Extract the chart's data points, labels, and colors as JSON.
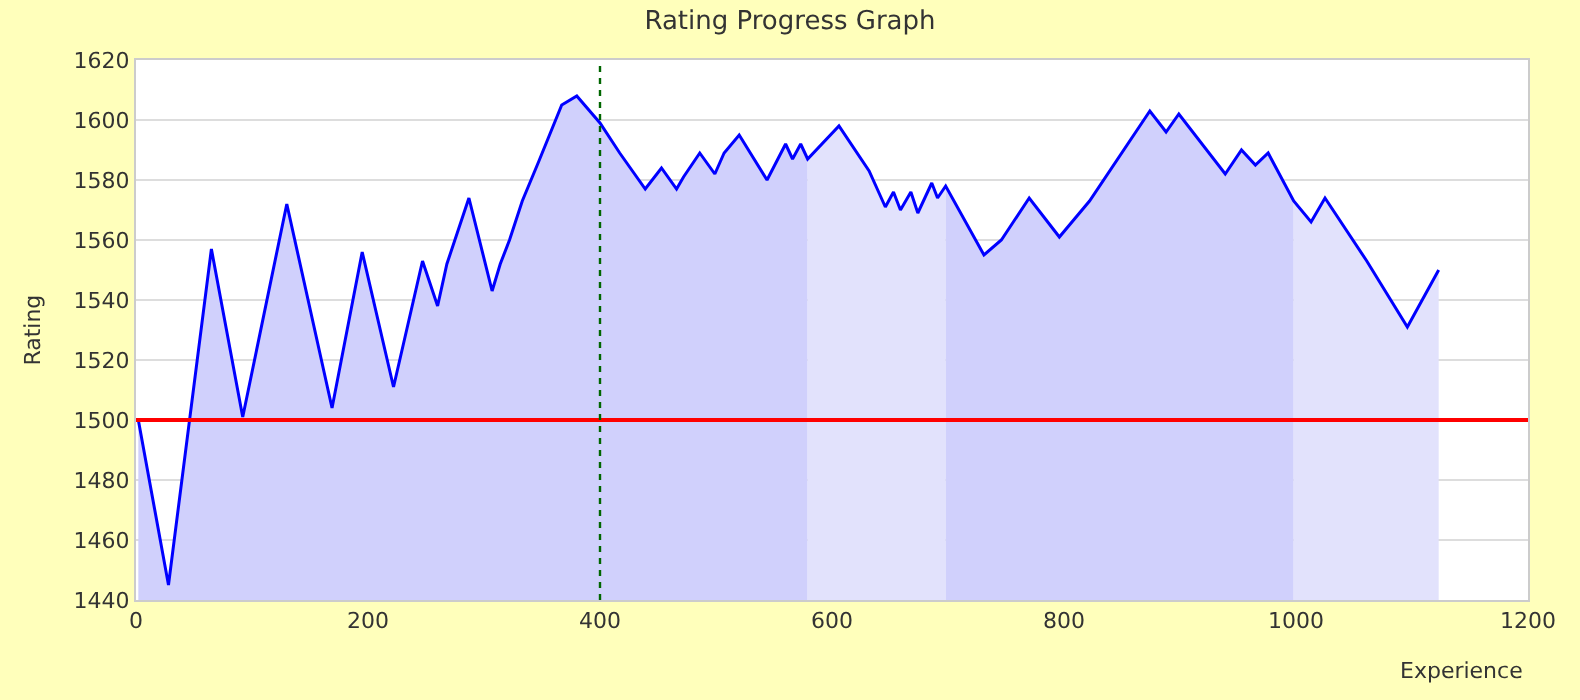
{
  "chart_data": {
    "type": "area",
    "title": "Rating Progress Graph",
    "xlabel": "Experience",
    "ylabel": "Rating",
    "xlim": [
      0,
      1200
    ],
    "xticks": [
      0,
      200,
      400,
      600,
      800,
      1000,
      1200
    ],
    "ylim": [
      1440,
      1620
    ],
    "yticks": [
      1440,
      1460,
      1480,
      1500,
      1520,
      1540,
      1560,
      1580,
      1600,
      1620
    ],
    "grid": "y",
    "ref_lines": [
      {
        "axis": "y",
        "value": 1500,
        "color": "#ff0000",
        "line_style": "solid"
      },
      {
        "axis": "x",
        "value": 400,
        "color": "#006600",
        "line_style": "dotted"
      }
    ],
    "series": [
      {
        "color": "#d0d0fc",
        "x": [
          2,
          28,
          65,
          92,
          130,
          169,
          195,
          222,
          247,
          260,
          268,
          287,
          307,
          314,
          322,
          333,
          347,
          367,
          380,
          400,
          417,
          439,
          453,
          466,
          472,
          486,
          499,
          507,
          520,
          544,
          560,
          566,
          573,
          579
        ],
        "values": [
          1500,
          1445,
          1557,
          1501,
          1572,
          1504,
          1556,
          1511,
          1553,
          1538,
          1552,
          1574,
          1543,
          1552,
          1560,
          1573,
          1586,
          1605,
          1608,
          1599,
          1589,
          1577,
          1584,
          1577,
          1581,
          1589,
          1582,
          1589,
          1595,
          1580,
          1592,
          1587,
          1592,
          1587
        ]
      },
      {
        "color": "#e2e2fc",
        "x": [
          579,
          606,
          632,
          646,
          653,
          659,
          668,
          674,
          686,
          691,
          698
        ],
        "values": [
          1587,
          1598,
          1583,
          1571,
          1576,
          1570,
          1576,
          1569,
          1579,
          1574,
          1578
        ]
      },
      {
        "color": "#d0d0fc",
        "x": [
          698,
          731,
          746,
          770,
          796,
          822,
          874,
          888,
          899,
          939,
          953,
          965,
          976,
          998
        ],
        "values": [
          1578,
          1555,
          1560,
          1574,
          1561,
          1573,
          1603,
          1596,
          1602,
          1582,
          1590,
          1585,
          1589,
          1573
        ]
      },
      {
        "color": "#e2e2fc",
        "x": [
          998,
          1013,
          1025,
          1061,
          1096,
          1123
        ],
        "values": [
          1573,
          1566,
          1574,
          1553,
          1531,
          1550
        ]
      },
      {
        "type": "line",
        "color": "#0000ff",
        "line_style": "solid",
        "marker": "none",
        "x": [
          2,
          28,
          65,
          92,
          130,
          169,
          195,
          222,
          247,
          260,
          268,
          287,
          307,
          314,
          322,
          333,
          347,
          367,
          380,
          400,
          417,
          439,
          453,
          466,
          472,
          486,
          499,
          507,
          520,
          544,
          560,
          566,
          573,
          579,
          606,
          632,
          646,
          653,
          659,
          668,
          674,
          686,
          691,
          698,
          731,
          746,
          770,
          796,
          822,
          874,
          888,
          899,
          939,
          953,
          965,
          976,
          998,
          1013,
          1025,
          1061,
          1096,
          1123
        ],
        "values": [
          1500,
          1445,
          1557,
          1501,
          1572,
          1504,
          1556,
          1511,
          1553,
          1538,
          1552,
          1574,
          1543,
          1552,
          1560,
          1573,
          1586,
          1605,
          1608,
          1599,
          1589,
          1577,
          1584,
          1577,
          1581,
          1589,
          1582,
          1589,
          1595,
          1580,
          1592,
          1587,
          1592,
          1587,
          1598,
          1583,
          1571,
          1576,
          1570,
          1576,
          1569,
          1579,
          1574,
          1578,
          1555,
          1560,
          1574,
          1561,
          1573,
          1603,
          1596,
          1602,
          1582,
          1590,
          1585,
          1589,
          1573,
          1566,
          1574,
          1553,
          1531,
          1550
        ]
      }
    ]
  }
}
